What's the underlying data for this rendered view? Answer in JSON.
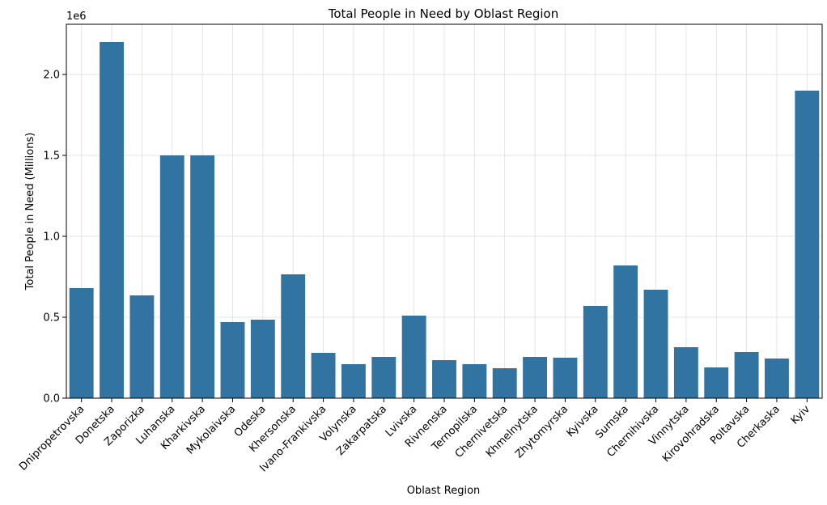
{
  "chart_data": {
    "type": "bar",
    "title": "Total People in Need by Oblast Region",
    "xlabel": "Oblast Region",
    "ylabel": "Total People in Need (Millions)",
    "y_offset_label": "1e6",
    "categories": [
      "Dnipropetrovska",
      "Donetska",
      "Zaporizka",
      "Luhanska",
      "Kharkivska",
      "Mykolaivska",
      "Odeska",
      "Khersonska",
      "Ivano-Frankivska",
      "Volynska",
      "Zakarpatska",
      "Lvivska",
      "Rivnenska",
      "Ternopilska",
      "Chernivetska",
      "Khmelnytska",
      "Zhytomyrska",
      "Kyivska",
      "Sumska",
      "Chernihivska",
      "Vinnytska",
      "Kirovohradska",
      "Poltavska",
      "Cherkaska",
      "Kyiv"
    ],
    "values": [
      680000,
      2200000,
      635000,
      1500000,
      1500000,
      470000,
      485000,
      765000,
      280000,
      210000,
      255000,
      510000,
      235000,
      210000,
      185000,
      255000,
      250000,
      570000,
      820000,
      670000,
      315000,
      190000,
      285000,
      245000,
      1900000
    ],
    "yticks": [
      "0.0",
      "0.5",
      "1.0",
      "1.5",
      "2.0"
    ],
    "ylim": [
      0,
      2310000
    ],
    "grid": true,
    "legend": "none",
    "bar_color": "#3274a1"
  }
}
